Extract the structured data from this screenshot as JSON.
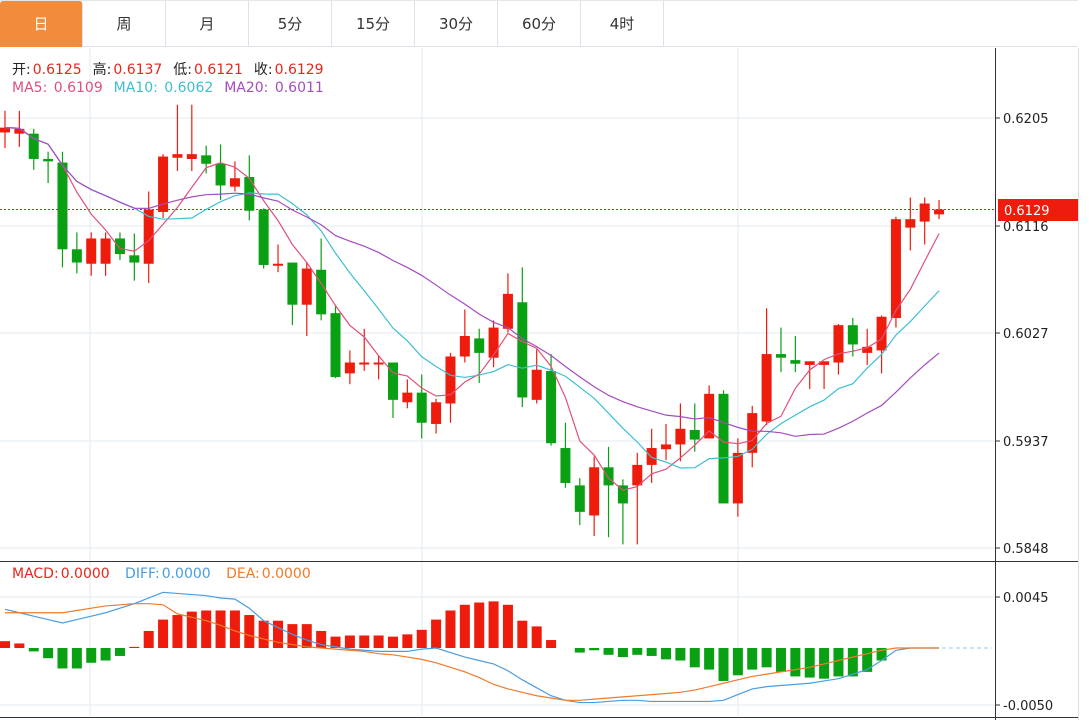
{
  "tabs": [
    {
      "label": "日",
      "active": true
    },
    {
      "label": "周",
      "active": false
    },
    {
      "label": "月",
      "active": false
    },
    {
      "label": "5分",
      "active": false
    },
    {
      "label": "15分",
      "active": false
    },
    {
      "label": "30分",
      "active": false
    },
    {
      "label": "60分",
      "active": false
    },
    {
      "label": "4时",
      "active": false
    }
  ],
  "ohlc_info": {
    "open_label": "开:",
    "open": "0.6125",
    "high_label": "高:",
    "high": "0.6137",
    "low_label": "低:",
    "low": "0.6121",
    "close_label": "收:",
    "close": "0.6129"
  },
  "ma_info": {
    "ma5_label": "MA5:",
    "ma5": "0.6109",
    "ma10_label": "MA10:",
    "ma10": "0.6062",
    "ma20_label": "MA20:",
    "ma20": "0.6011"
  },
  "macd_info": {
    "macd_label": "MACD:",
    "macd": "0.0000",
    "diff_label": "DIFF:",
    "diff": "0.0000",
    "dea_label": "DEA:",
    "dea": "0.0000"
  },
  "current_price": "0.6129",
  "colors": {
    "up": "#ee1c0c",
    "down": "#0aa014",
    "ma5": "#e0507a",
    "ma10": "#3ebfd0",
    "ma20": "#a54cbf",
    "diff": "#4a9de0",
    "dea": "#f07b2a",
    "accent": "#f08c3c"
  },
  "chart_data": [
    {
      "type": "candlestick",
      "price_ticks": [
        "0.6205",
        "0.6116",
        "0.6027",
        "0.5937",
        "0.5848"
      ],
      "ylim": [
        0.5848,
        0.6205
      ],
      "ma_periods": [
        5,
        10,
        20
      ],
      "ohlc": [
        [
          0.6193,
          0.6211,
          0.618,
          0.6197
        ],
        [
          0.6192,
          0.6211,
          0.6181,
          0.6196
        ],
        [
          0.6192,
          0.6196,
          0.6162,
          0.6171
        ],
        [
          0.6171,
          0.6177,
          0.6151,
          0.6169
        ],
        [
          0.6168,
          0.6177,
          0.6081,
          0.6096
        ],
        [
          0.6096,
          0.611,
          0.6076,
          0.6085
        ],
        [
          0.6084,
          0.611,
          0.6074,
          0.6105
        ],
        [
          0.6084,
          0.611,
          0.6074,
          0.6105
        ],
        [
          0.6105,
          0.611,
          0.6087,
          0.6092
        ],
        [
          0.6091,
          0.6109,
          0.607,
          0.6085
        ],
        [
          0.6084,
          0.6144,
          0.6068,
          0.6129
        ],
        [
          0.6127,
          0.6175,
          0.6122,
          0.6173
        ],
        [
          0.6172,
          0.6216,
          0.6161,
          0.6175
        ],
        [
          0.6171,
          0.6216,
          0.6161,
          0.6175
        ],
        [
          0.6174,
          0.6182,
          0.6159,
          0.6167
        ],
        [
          0.6167,
          0.6183,
          0.6137,
          0.6149
        ],
        [
          0.6148,
          0.6169,
          0.6144,
          0.6155
        ],
        [
          0.6156,
          0.6174,
          0.612,
          0.6128
        ],
        [
          0.6129,
          0.613,
          0.608,
          0.6083
        ],
        [
          0.6083,
          0.61,
          0.6077,
          0.6084
        ],
        [
          0.6085,
          0.6085,
          0.6033,
          0.605
        ],
        [
          0.605,
          0.6085,
          0.6024,
          0.608
        ],
        [
          0.6079,
          0.6105,
          0.6037,
          0.6042
        ],
        [
          0.6043,
          0.605,
          0.5989,
          0.599
        ],
        [
          0.5993,
          0.6012,
          0.5984,
          0.6002
        ],
        [
          0.6001,
          0.603,
          0.5995,
          0.6002
        ],
        [
          0.6001,
          0.6008,
          0.5988,
          0.6002
        ],
        [
          0.6002,
          0.6002,
          0.5956,
          0.5971
        ],
        [
          0.5969,
          0.5988,
          0.5964,
          0.5977
        ],
        [
          0.5977,
          0.5992,
          0.5939,
          0.5952
        ],
        [
          0.5951,
          0.5972,
          0.5943,
          0.5969
        ],
        [
          0.5968,
          0.601,
          0.5952,
          0.6007
        ],
        [
          0.6007,
          0.6046,
          0.6002,
          0.6024
        ],
        [
          0.6022,
          0.603,
          0.5985,
          0.601
        ],
        [
          0.6006,
          0.6037,
          0.5998,
          0.6031
        ],
        [
          0.603,
          0.6076,
          0.6027,
          0.6059
        ],
        [
          0.6052,
          0.6081,
          0.5965,
          0.5973
        ],
        [
          0.5971,
          0.6013,
          0.5968,
          0.5996
        ],
        [
          0.5995,
          0.6009,
          0.5933,
          0.5935
        ],
        [
          0.5931,
          0.5952,
          0.5898,
          0.5902
        ],
        [
          0.59,
          0.5906,
          0.5867,
          0.5878
        ],
        [
          0.5875,
          0.5924,
          0.5858,
          0.5915
        ],
        [
          0.5915,
          0.5932,
          0.5857,
          0.59
        ],
        [
          0.59,
          0.5905,
          0.5851,
          0.5885
        ],
        [
          0.59,
          0.5927,
          0.5851,
          0.5917
        ],
        [
          0.5917,
          0.5947,
          0.5902,
          0.5931
        ],
        [
          0.593,
          0.5951,
          0.5921,
          0.5934
        ],
        [
          0.5934,
          0.5968,
          0.592,
          0.5947
        ],
        [
          0.5946,
          0.5968,
          0.5928,
          0.5938
        ],
        [
          0.5939,
          0.5983,
          0.5939,
          0.5976
        ],
        [
          0.5976,
          0.5979,
          0.5885,
          0.5885
        ],
        [
          0.5885,
          0.5939,
          0.5874,
          0.5927
        ],
        [
          0.5927,
          0.5966,
          0.5915,
          0.596
        ],
        [
          0.5953,
          0.6047,
          0.595,
          0.6009
        ],
        [
          0.6009,
          0.6031,
          0.5994,
          0.6006
        ],
        [
          0.6004,
          0.6024,
          0.5994,
          0.6001
        ],
        [
          0.6,
          0.6003,
          0.598,
          0.6003
        ],
        [
          0.6,
          0.6003,
          0.598,
          0.6003
        ],
        [
          0.6002,
          0.6034,
          0.5992,
          0.6033
        ],
        [
          0.6033,
          0.6039,
          0.6007,
          0.6017
        ],
        [
          0.601,
          0.603,
          0.6,
          0.6015
        ],
        [
          0.6012,
          0.6041,
          0.5993,
          0.604
        ],
        [
          0.6039,
          0.6123,
          0.6031,
          0.6121
        ],
        [
          0.6114,
          0.6139,
          0.6095,
          0.6121
        ],
        [
          0.6119,
          0.6139,
          0.61,
          0.6134
        ],
        [
          0.6125,
          0.6137,
          0.6121,
          0.6129
        ]
      ]
    },
    {
      "type": "bar+line",
      "title": "MACD",
      "ticks": [
        "0.0045",
        "-0.0050"
      ],
      "ylim": [
        -0.005,
        0.0045
      ],
      "histogram": [
        0.0006,
        0.0004,
        -0.0003,
        -0.0009,
        -0.0018,
        -0.0018,
        -0.0013,
        -0.0011,
        -0.0007,
        0.0001,
        0.0015,
        0.0025,
        0.0029,
        0.0032,
        0.0033,
        0.0033,
        0.0033,
        0.0029,
        0.0024,
        0.0024,
        0.0021,
        0.0021,
        0.0015,
        0.001,
        0.0011,
        0.0011,
        0.0011,
        0.001,
        0.0012,
        0.0016,
        0.0025,
        0.0033,
        0.0038,
        0.004,
        0.0041,
        0.0038,
        0.0024,
        0.0019,
        0.0007,
        0,
        -0.0004,
        -0.0002,
        -0.0006,
        -0.0008,
        -0.0006,
        -0.0007,
        -0.001,
        -0.0011,
        -0.0017,
        -0.0019,
        -0.0029,
        -0.0024,
        -0.0019,
        -0.0017,
        -0.0021,
        -0.0025,
        -0.0026,
        -0.0027,
        -0.0025,
        -0.0025,
        -0.0021,
        -0.0011,
        0,
        0,
        0,
        0
      ],
      "diff": [
        0.0034,
        0.0031,
        0.0028,
        0.0025,
        0.0022,
        0.0025,
        0.0028,
        0.0031,
        0.0035,
        0.0039,
        0.0044,
        0.0049,
        0.0048,
        0.0047,
        0.0046,
        0.0044,
        0.0043,
        0.0035,
        0.0024,
        0.0018,
        0.0012,
        0.0007,
        0.0003,
        0.0001,
        -0.0001,
        -0.0002,
        -0.0003,
        -0.0003,
        -0.0003,
        -0.0001,
        0.0,
        -0.0004,
        -0.0008,
        -0.0011,
        -0.0014,
        -0.002,
        -0.0028,
        -0.0035,
        -0.0042,
        -0.0046,
        -0.0048,
        -0.0048,
        -0.0047,
        -0.0046,
        -0.0046,
        -0.0047,
        -0.0047,
        -0.0047,
        -0.0047,
        -0.0047,
        -0.0046,
        -0.0041,
        -0.0036,
        -0.0034,
        -0.0033,
        -0.0032,
        -0.0031,
        -0.0029,
        -0.0027,
        -0.0023,
        -0.0019,
        -0.0011,
        -0.0002,
        0,
        0,
        0
      ],
      "dea": [
        0.0031,
        0.0031,
        0.0031,
        0.0031,
        0.0031,
        0.0033,
        0.0035,
        0.0037,
        0.0038,
        0.0039,
        0.0039,
        0.0038,
        0.003,
        0.0027,
        0.0024,
        0.002,
        0.0015,
        0.0011,
        0.0008,
        0.0005,
        0.0003,
        0.0001,
        0.0,
        -0.0001,
        -0.0002,
        -0.0003,
        -0.0005,
        -0.0006,
        -0.0008,
        -0.001,
        -0.0013,
        -0.0017,
        -0.0021,
        -0.0026,
        -0.0032,
        -0.0036,
        -0.0039,
        -0.0042,
        -0.0044,
        -0.0046,
        -0.0046,
        -0.0045,
        -0.0044,
        -0.0043,
        -0.0042,
        -0.0041,
        -0.004,
        -0.0039,
        -0.0037,
        -0.0034,
        -0.0031,
        -0.0028,
        -0.0025,
        -0.0023,
        -0.0021,
        -0.0019,
        -0.0017,
        -0.0014,
        -0.0011,
        -0.0008,
        -0.0005,
        -0.0002,
        0,
        0,
        0,
        0
      ]
    }
  ]
}
